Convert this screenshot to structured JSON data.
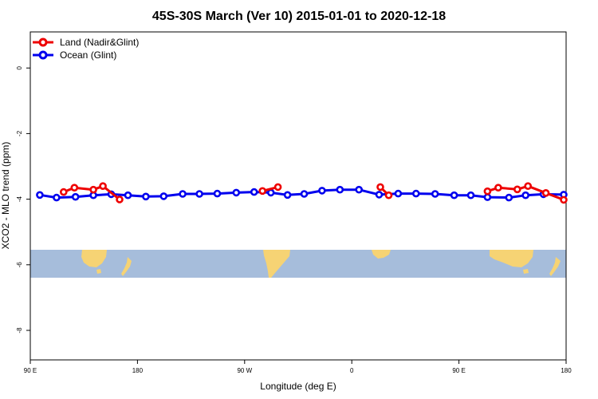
{
  "chart_data": {
    "type": "line",
    "title": "45S-30S March (Ver 10)   2015-01-01 to 2020-12-18",
    "xlabel": "Longitude (deg E)",
    "ylabel": "XCO2 - MLO trend (ppm)",
    "xlim": [
      90,
      540
    ],
    "ylim": [
      -8.9,
      1.1
    ],
    "x_ticks": [
      {
        "value": 90,
        "label": "90 E"
      },
      {
        "value": 180,
        "label": "180"
      },
      {
        "value": 270,
        "label": "90 W"
      },
      {
        "value": 360,
        "label": "0"
      },
      {
        "value": 450,
        "label": "90 E"
      },
      {
        "value": 540,
        "label": "180"
      }
    ],
    "y_ticks": [
      {
        "value": 0,
        "label": "0"
      },
      {
        "value": -2,
        "label": "-2"
      },
      {
        "value": -4,
        "label": "-4"
      },
      {
        "value": -6,
        "label": "-6"
      },
      {
        "value": -8,
        "label": "-8"
      }
    ],
    "grid": false,
    "legend_position": "top-left",
    "map_strip": {
      "lat_range": [
        -45,
        -30
      ],
      "ocean_color": "#a6bddb",
      "land_color": "#f6d374"
    },
    "series": [
      {
        "name": "Land (Nadir&Glint)",
        "color": "#ee0000",
        "segments": [
          [
            [
              118,
              -3.78
            ],
            [
              127,
              -3.65
            ],
            [
              143,
              -3.71
            ],
            [
              151,
              -3.6
            ],
            [
              165,
              -4.01
            ]
          ],
          [
            [
              285,
              -3.75
            ],
            [
              298,
              -3.63
            ]
          ],
          [
            [
              384,
              -3.63
            ],
            [
              391,
              -3.88
            ]
          ],
          [
            [
              474,
              -3.76
            ],
            [
              483,
              -3.65
            ],
            [
              499,
              -3.7
            ],
            [
              508,
              -3.6
            ],
            [
              523,
              -3.81
            ],
            [
              538,
              -4.02
            ]
          ]
        ]
      },
      {
        "name": "Ocean (Glint)",
        "color": "#0000ee",
        "segments": [
          [
            [
              98,
              -3.87
            ],
            [
              112,
              -3.95
            ],
            [
              128,
              -3.93
            ],
            [
              143,
              -3.88
            ],
            [
              158,
              -3.85
            ],
            [
              172,
              -3.88
            ],
            [
              187,
              -3.92
            ],
            [
              202,
              -3.91
            ],
            [
              218,
              -3.84
            ],
            [
              232,
              -3.84
            ],
            [
              247,
              -3.83
            ],
            [
              263,
              -3.8
            ],
            [
              278,
              -3.78
            ],
            [
              292,
              -3.8
            ],
            [
              306,
              -3.87
            ],
            [
              320,
              -3.84
            ],
            [
              335,
              -3.74
            ],
            [
              350,
              -3.71
            ],
            [
              366,
              -3.71
            ],
            [
              383,
              -3.86
            ],
            [
              399,
              -3.83
            ],
            [
              414,
              -3.83
            ],
            [
              430,
              -3.84
            ],
            [
              446,
              -3.88
            ],
            [
              460,
              -3.88
            ],
            [
              474,
              -3.94
            ],
            [
              492,
              -3.95
            ],
            [
              506,
              -3.88
            ],
            [
              521,
              -3.85
            ],
            [
              538,
              -3.86
            ]
          ]
        ]
      }
    ]
  }
}
